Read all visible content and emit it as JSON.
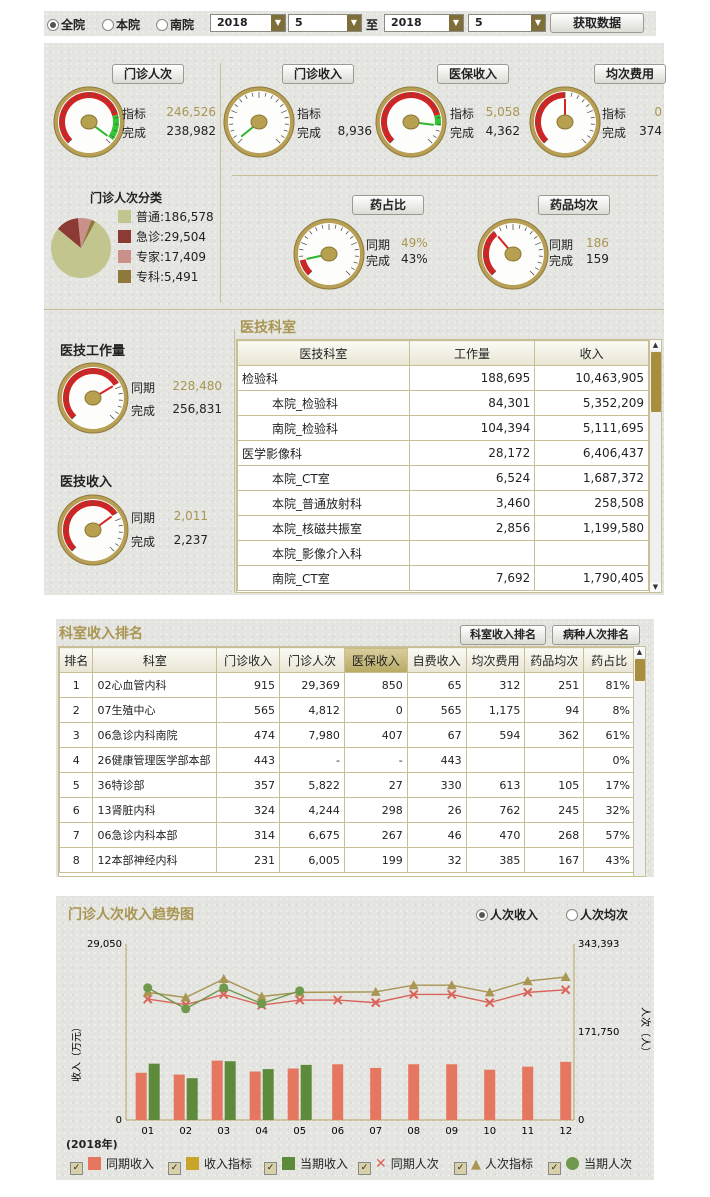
{
  "filter": {
    "scope_options": [
      "全院",
      "本院",
      "南院"
    ],
    "scope_selected": "全院",
    "start_year": "2018",
    "start_month": "5",
    "to_label": "至",
    "end_year": "2018",
    "end_month": "5",
    "fetch_button": "获取数据"
  },
  "gauges": {
    "outpatient_visits": {
      "title": "门诊人次",
      "l1": "指标",
      "v1": "246,526",
      "l2": "完成",
      "v2": "238,982",
      "fill": 0.97
    },
    "outpatient_income": {
      "title": "门诊收入",
      "l1": "指标",
      "v1": "",
      "l2": "完成",
      "v2": "8,936",
      "fill": 0
    },
    "insurance_income": {
      "title": "医保收入",
      "l1": "指标",
      "v1": "5,058",
      "l2": "完成",
      "v2": "4,362",
      "fill": 0.86
    },
    "avg_cost": {
      "title": "均次费用",
      "l1": "指标",
      "v1": "0",
      "l2": "完成",
      "v2": "374",
      "fill": 0.5
    },
    "drug_ratio": {
      "title": "药占比",
      "l1": "同期",
      "v1": "49%",
      "l2": "完成",
      "v2": "43%",
      "fill": 0.12
    },
    "drug_avg": {
      "title": "药品均次",
      "l1": "同期",
      "v1": "186",
      "l2": "完成",
      "v2": "159",
      "fill": 0.35
    },
    "tech_work": {
      "title": "医技工作量",
      "l1": "同期",
      "v1": "228,480",
      "l2": "完成",
      "v2": "256,831",
      "fill": 0.72
    },
    "tech_income": {
      "title": "医技收入",
      "l1": "同期",
      "v1": "2,011",
      "l2": "完成",
      "v2": "2,237",
      "fill": 0.7
    }
  },
  "visit_types": {
    "title": "门诊人次分类",
    "items": [
      {
        "label": "普通:186,578",
        "value": 186578,
        "color": "#c3c58f"
      },
      {
        "label": "急诊:29,504",
        "value": 29504,
        "color": "#8c3a34"
      },
      {
        "label": "专家:17,409",
        "value": 17409,
        "color": "#c9918a"
      },
      {
        "label": "专科:5,491",
        "value": 5491,
        "color": "#8d7a3a"
      }
    ]
  },
  "tech_dept": {
    "title": "医技科室",
    "columns": [
      "医技科室",
      "工作量",
      "收入"
    ],
    "rows": [
      {
        "name": "检验科",
        "indent": false,
        "work": "188,695",
        "income": "10,463,905"
      },
      {
        "name": "本院_检验科",
        "indent": true,
        "work": "84,301",
        "income": "5,352,209"
      },
      {
        "name": "南院_检验科",
        "indent": true,
        "work": "104,394",
        "income": "5,111,695"
      },
      {
        "name": "医学影像科",
        "indent": false,
        "work": "28,172",
        "income": "6,406,437"
      },
      {
        "name": "本院_CT室",
        "indent": true,
        "work": "6,524",
        "income": "1,687,372"
      },
      {
        "name": "本院_普通放射科",
        "indent": true,
        "work": "3,460",
        "income": "258,508"
      },
      {
        "name": "本院_核磁共振室",
        "indent": true,
        "work": "2,856",
        "income": "1,199,580"
      },
      {
        "name": "本院_影像介入科",
        "indent": true,
        "work": "",
        "income": ""
      },
      {
        "name": "南院_CT室",
        "indent": true,
        "work": "7,692",
        "income": "1,790,405"
      }
    ]
  },
  "ranking": {
    "title": "科室收入排名",
    "tab1": "科室收入排名",
    "tab2": "病种人次排名",
    "columns": [
      "排名",
      "科室",
      "门诊收入",
      "门诊人次",
      "医保收入",
      "自费收入",
      "均次费用",
      "药品均次",
      "药占比"
    ],
    "rows": [
      [
        "1",
        "02心血管内科",
        "915",
        "29,369",
        "850",
        "65",
        "312",
        "251",
        "81%"
      ],
      [
        "2",
        "07生殖中心",
        "565",
        "4,812",
        "0",
        "565",
        "1,175",
        "94",
        "8%"
      ],
      [
        "3",
        "06急诊内科南院",
        "474",
        "7,980",
        "407",
        "67",
        "594",
        "362",
        "61%"
      ],
      [
        "4",
        "26健康管理医学部本部",
        "443",
        "-",
        "-",
        "443",
        "",
        "",
        "0%"
      ],
      [
        "5",
        "36特诊部",
        "357",
        "5,822",
        "27",
        "330",
        "613",
        "105",
        "17%"
      ],
      [
        "6",
        "13肾脏内科",
        "324",
        "4,244",
        "298",
        "26",
        "762",
        "245",
        "32%"
      ],
      [
        "7",
        "06急诊内科本部",
        "314",
        "6,675",
        "267",
        "46",
        "470",
        "268",
        "57%"
      ],
      [
        "8",
        "12本部神经内科",
        "231",
        "6,005",
        "199",
        "32",
        "385",
        "167",
        "43%"
      ]
    ]
  },
  "trend": {
    "title": "门诊人次收入趋势图",
    "radio1": "人次收入",
    "radio2": "人次均次",
    "year_label": "(2018年)",
    "legend": [
      "同期收入",
      "收入指标",
      "当期收入",
      "同期人次",
      "人次指标",
      "当期人次"
    ]
  },
  "chart_data": {
    "type": "bar",
    "title": "门诊人次收入趋势图",
    "categories": [
      "01",
      "02",
      "03",
      "04",
      "05",
      "06",
      "07",
      "08",
      "09",
      "10",
      "11",
      "12"
    ],
    "ylabel": "收入（万元）",
    "y2label": "人次（人）",
    "ylim": [
      0,
      29050
    ],
    "y2lim": [
      0,
      343393
    ],
    "y_ticks": [
      "29,050",
      "0"
    ],
    "y2_ticks": [
      "343,393",
      "171,750",
      "0"
    ],
    "series": [
      {
        "name": "同期收入",
        "axis": "left",
        "kind": "bar",
        "color": "#e5765f",
        "values": [
          7800,
          7500,
          9800,
          8000,
          8500,
          9200,
          8600,
          9200,
          9200,
          8300,
          8800,
          9600
        ]
      },
      {
        "name": "当期收入",
        "axis": "left",
        "kind": "bar",
        "color": "#5e8a3c",
        "values": [
          9300,
          6900,
          9700,
          8400,
          9100,
          null,
          null,
          null,
          null,
          null,
          null,
          null
        ]
      },
      {
        "name": "同期人次",
        "axis": "right",
        "kind": "line",
        "color": "#d9645a",
        "values": [
          236000,
          225000,
          245000,
          224000,
          234000,
          234000,
          229000,
          245000,
          245000,
          229000,
          249000,
          254000
        ]
      },
      {
        "name": "人次指标",
        "axis": "right",
        "kind": "line",
        "color": "#a99653",
        "values": [
          249000,
          239000,
          275000,
          241000,
          249000,
          null,
          250000,
          263000,
          263000,
          249000,
          271000,
          279000
        ]
      },
      {
        "name": "当期人次",
        "axis": "right",
        "kind": "line",
        "color": "#6f9a4d",
        "values": [
          258000,
          217000,
          258000,
          227000,
          252000,
          null,
          null,
          null,
          null,
          null,
          null,
          null
        ]
      }
    ],
    "legend_position": "bottom",
    "xlabel": ""
  }
}
